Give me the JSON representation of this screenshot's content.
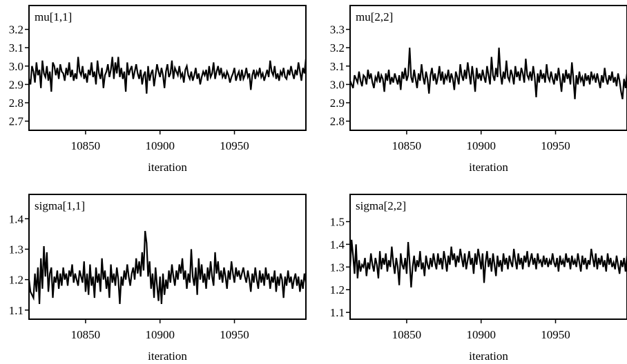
{
  "chart_data": [
    {
      "type": "line",
      "title": "mu[1,1]",
      "xlabel": "iteration",
      "ylabel": "",
      "xlim": [
        10812,
        10998
      ],
      "ylim": [
        2.65,
        3.33
      ],
      "xticks": [
        10850,
        10900,
        10950
      ],
      "yticks": [
        2.7,
        2.8,
        2.9,
        3.0,
        3.1,
        3.2
      ],
      "ytick_labels": [
        "2.7",
        "2.8",
        "2.9",
        "3.0",
        "3.1",
        "3.2"
      ],
      "series": [
        {
          "x_start": 10812,
          "x_step": 1,
          "values": [
            2.93,
            2.9,
            3.0,
            2.97,
            2.91,
            3.02,
            2.95,
            2.98,
            2.88,
            3.03,
            2.96,
            2.94,
            3.0,
            2.92,
            2.97,
            2.86,
            3.02,
            3.0,
            2.95,
            2.99,
            2.93,
            3.01,
            2.97,
            2.96,
            2.92,
            2.99,
            2.95,
            3.02,
            2.94,
            2.98,
            2.92,
            2.96,
            2.93,
            3.05,
            2.97,
            2.95,
            3.0,
            2.93,
            2.96,
            2.91,
            2.98,
            2.95,
            3.02,
            2.94,
            2.97,
            2.9,
            3.03,
            2.96,
            2.93,
            2.99,
            2.88,
            2.95,
            2.97,
            3.01,
            2.94,
            2.98,
            3.05,
            2.93,
            3.02,
            2.96,
            3.05,
            2.94,
            2.99,
            2.93,
            2.97,
            2.86,
            3.02,
            2.95,
            2.98,
            3.0,
            2.93,
            2.97,
            3.01,
            2.96,
            2.93,
            2.98,
            2.9,
            2.95,
            2.97,
            2.85,
            3.0,
            2.92,
            2.96,
            2.98,
            2.89,
            2.95,
            3.01,
            2.97,
            2.94,
            2.99,
            2.95,
            2.88,
            2.97,
            3.01,
            2.94,
            2.96,
            3.03,
            2.93,
            2.99,
            2.97,
            2.95,
            3.0,
            2.94,
            2.96,
            2.91,
            2.98,
            3.0,
            2.95,
            2.93,
            2.97,
            2.92,
            2.95,
            2.99,
            2.93,
            2.96,
            2.9,
            2.94,
            2.97,
            2.95,
            2.98,
            2.92,
            3.0,
            2.94,
            2.96,
            3.02,
            2.93,
            2.97,
            3.0,
            2.95,
            2.99,
            2.94,
            2.96,
            2.93,
            2.97,
            2.95,
            2.91,
            2.94,
            2.96,
            2.99,
            2.92,
            2.95,
            2.97,
            2.92,
            2.98,
            2.93,
            2.95,
            2.99,
            2.94,
            2.96,
            2.87,
            2.95,
            2.98,
            2.93,
            2.97,
            2.95,
            2.99,
            2.94,
            2.96,
            2.92,
            2.95,
            2.98,
            2.94,
            3.03,
            2.97,
            2.95,
            3.0,
            2.93,
            2.96,
            2.92,
            2.97,
            2.95,
            2.99,
            2.94,
            2.93,
            2.98,
            2.95,
            3.0,
            2.96,
            2.93,
            2.98,
            2.95,
            3.02,
            2.97,
            2.92,
            2.99,
            2.96,
            3.04,
            2.95,
            3.0,
            2.93,
            2.97,
            2.95,
            3.07,
            2.96,
            2.94,
            3.04,
            2.92
          ]
        }
      ]
    },
    {
      "type": "line",
      "title": "mu[2,2]",
      "xlabel": "iteration",
      "ylabel": "",
      "xlim": [
        10812,
        10998
      ],
      "ylim": [
        2.75,
        3.43
      ],
      "xticks": [
        10850,
        10900,
        10950
      ],
      "yticks": [
        2.8,
        2.9,
        3.0,
        3.1,
        3.2,
        3.3
      ],
      "ytick_labels": [
        "2.8",
        "2.9",
        "3.0",
        "3.1",
        "3.2",
        "3.3"
      ],
      "series": [
        {
          "x_start": 10812,
          "x_step": 1,
          "values": [
            3.02,
            3.0,
            2.98,
            3.05,
            3.03,
            3.01,
            3.07,
            3.02,
            2.99,
            3.05,
            3.04,
            3.0,
            3.08,
            3.03,
            3.06,
            3.01,
            2.98,
            3.04,
            3.02,
            3.07,
            3.01,
            3.05,
            3.03,
            2.96,
            3.06,
            3.02,
            3.08,
            3.0,
            3.04,
            3.01,
            3.06,
            3.03,
            3.0,
            3.05,
            2.97,
            3.07,
            3.03,
            3.09,
            3.02,
            3.05,
            3.2,
            3.04,
            3.01,
            3.08,
            3.03,
            2.98,
            3.06,
            3.02,
            3.11,
            3.04,
            3.0,
            3.07,
            3.03,
            2.95,
            3.05,
            3.09,
            3.02,
            3.06,
            3.0,
            3.04,
            3.1,
            3.02,
            3.07,
            3.0,
            3.05,
            3.03,
            3.08,
            3.01,
            3.06,
            3.03,
            2.97,
            3.07,
            3.04,
            3.0,
            3.11,
            3.05,
            3.02,
            3.08,
            3.03,
            3.12,
            3.06,
            3.0,
            3.1,
            3.04,
            2.96,
            3.09,
            3.03,
            3.06,
            3.02,
            3.08,
            3.04,
            3.01,
            3.1,
            3.05,
            3.0,
            3.15,
            3.05,
            3.02,
            3.09,
            3.04,
            3.2,
            3.06,
            3.0,
            3.07,
            3.03,
            3.13,
            3.04,
            3.02,
            3.08,
            3.05,
            3.0,
            3.1,
            3.04,
            3.07,
            3.02,
            3.09,
            3.06,
            3.01,
            3.14,
            3.05,
            3.03,
            3.07,
            3.02,
            3.1,
            3.04,
            2.93,
            3.06,
            3.01,
            3.08,
            3.03,
            3.06,
            3.01,
            3.11,
            3.04,
            3.02,
            3.07,
            3.03,
            3.0,
            3.06,
            3.02,
            3.09,
            3.03,
            2.96,
            3.06,
            3.01,
            3.08,
            3.03,
            3.06,
            3.0,
            3.12,
            3.03,
            2.92,
            3.05,
            3.0,
            3.07,
            3.02,
            3.04,
            2.99,
            3.06,
            3.02,
            3.05,
            3.0,
            3.07,
            3.03,
            3.05,
            3.01,
            3.06,
            3.02,
            2.98,
            3.05,
            3.01,
            3.09,
            3.03,
            3.0,
            3.05,
            3.02,
            3.07,
            3.01,
            3.04,
            2.99,
            3.06,
            3.02,
            2.96,
            2.92,
            3.03,
            2.98,
            3.06,
            3.01,
            3.1,
            3.02,
            3.07,
            3.04,
            3.02,
            3.13
          ]
        }
      ]
    },
    {
      "type": "line",
      "title": "sigma[1,1]",
      "xlabel": "iteration",
      "ylabel": "",
      "xlim": [
        10812,
        10998
      ],
      "ylim": [
        1.07,
        1.48
      ],
      "xticks": [
        10850,
        10900,
        10950
      ],
      "yticks": [
        1.1,
        1.2,
        1.3,
        1.4
      ],
      "ytick_labels": [
        "1.1",
        "1.2",
        "1.3",
        "1.4"
      ],
      "series": [
        {
          "x_start": 10812,
          "x_step": 1,
          "values": [
            1.2,
            1.16,
            1.15,
            1.14,
            1.22,
            1.16,
            1.24,
            1.12,
            1.27,
            1.17,
            1.31,
            1.21,
            1.29,
            1.16,
            1.22,
            1.24,
            1.14,
            1.21,
            1.19,
            1.23,
            1.17,
            1.22,
            1.18,
            1.24,
            1.2,
            1.22,
            1.18,
            1.23,
            1.21,
            1.25,
            1.19,
            1.22,
            1.2,
            1.18,
            1.23,
            1.21,
            1.19,
            1.26,
            1.16,
            1.22,
            1.15,
            1.25,
            1.18,
            1.21,
            1.14,
            1.24,
            1.19,
            1.22,
            1.16,
            1.27,
            1.2,
            1.23,
            1.17,
            1.21,
            1.14,
            1.25,
            1.19,
            1.22,
            1.18,
            1.24,
            1.2,
            1.12,
            1.21,
            1.18,
            1.23,
            1.2,
            1.25,
            1.21,
            1.18,
            1.22,
            1.24,
            1.2,
            1.27,
            1.22,
            1.26,
            1.21,
            1.29,
            1.23,
            1.36,
            1.32,
            1.21,
            1.26,
            1.17,
            1.22,
            1.14,
            1.24,
            1.18,
            1.13,
            1.21,
            1.12,
            1.22,
            1.15,
            1.2,
            1.17,
            1.23,
            1.19,
            1.25,
            1.21,
            1.18,
            1.23,
            1.2,
            1.25,
            1.22,
            1.27,
            1.2,
            1.23,
            1.17,
            1.22,
            1.19,
            1.3,
            1.21,
            1.18,
            1.24,
            1.15,
            1.27,
            1.2,
            1.25,
            1.19,
            1.22,
            1.17,
            1.24,
            1.2,
            1.26,
            1.21,
            1.18,
            1.29,
            1.22,
            1.26,
            1.2,
            1.23,
            1.19,
            1.24,
            1.21,
            1.17,
            1.23,
            1.2,
            1.26,
            1.22,
            1.19,
            1.24,
            1.21,
            1.23,
            1.2,
            1.22,
            1.24,
            1.21,
            1.19,
            1.23,
            1.2,
            1.16,
            1.22,
            1.19,
            1.24,
            1.2,
            1.17,
            1.23,
            1.19,
            1.22,
            1.18,
            1.24,
            1.2,
            1.22,
            1.17,
            1.21,
            1.19,
            1.23,
            1.16,
            1.21,
            1.18,
            1.22,
            1.2,
            1.14,
            1.21,
            1.18,
            1.23,
            1.19,
            1.21,
            1.17,
            1.2,
            1.22,
            1.18,
            1.21,
            1.16,
            1.2,
            1.17,
            1.22,
            1.19,
            1.21,
            1.16,
            1.14,
            1.2
          ]
        }
      ]
    },
    {
      "type": "line",
      "title": "sigma[2,2]",
      "xlabel": "iteration",
      "ylabel": "",
      "xlim": [
        10812,
        10998
      ],
      "ylim": [
        1.07,
        1.62
      ],
      "xticks": [
        10850,
        10900,
        10950
      ],
      "yticks": [
        1.1,
        1.2,
        1.3,
        1.4,
        1.5
      ],
      "ytick_labels": [
        "1.1",
        "1.2",
        "1.3",
        "1.4",
        "1.5"
      ],
      "series": [
        {
          "x_start": 10812,
          "x_step": 1,
          "values": [
            1.3,
            1.42,
            1.35,
            1.27,
            1.4,
            1.25,
            1.33,
            1.28,
            1.31,
            1.3,
            1.34,
            1.26,
            1.32,
            1.29,
            1.36,
            1.31,
            1.28,
            1.34,
            1.31,
            1.25,
            1.37,
            1.29,
            1.34,
            1.31,
            1.36,
            1.28,
            1.33,
            1.3,
            1.39,
            1.32,
            1.27,
            1.34,
            1.3,
            1.22,
            1.36,
            1.31,
            1.29,
            1.34,
            1.27,
            1.41,
            1.32,
            1.21,
            1.3,
            1.35,
            1.28,
            1.33,
            1.3,
            1.37,
            1.29,
            1.32,
            1.26,
            1.35,
            1.31,
            1.29,
            1.34,
            1.3,
            1.36,
            1.32,
            1.29,
            1.36,
            1.31,
            1.34,
            1.29,
            1.37,
            1.33,
            1.28,
            1.35,
            1.31,
            1.39,
            1.33,
            1.36,
            1.3,
            1.35,
            1.32,
            1.38,
            1.34,
            1.3,
            1.36,
            1.29,
            1.33,
            1.37,
            1.31,
            1.34,
            1.27,
            1.36,
            1.31,
            1.38,
            1.34,
            1.29,
            1.36,
            1.23,
            1.32,
            1.37,
            1.3,
            1.34,
            1.28,
            1.36,
            1.31,
            1.26,
            1.35,
            1.3,
            1.33,
            1.28,
            1.36,
            1.31,
            1.34,
            1.29,
            1.35,
            1.32,
            1.3,
            1.38,
            1.33,
            1.29,
            1.36,
            1.31,
            1.34,
            1.29,
            1.35,
            1.32,
            1.37,
            1.3,
            1.33,
            1.36,
            1.31,
            1.34,
            1.29,
            1.36,
            1.32,
            1.33,
            1.3,
            1.35,
            1.31,
            1.34,
            1.3,
            1.33,
            1.31,
            1.36,
            1.32,
            1.3,
            1.34,
            1.28,
            1.35,
            1.31,
            1.33,
            1.3,
            1.36,
            1.32,
            1.34,
            1.29,
            1.35,
            1.31,
            1.33,
            1.3,
            1.36,
            1.32,
            1.28,
            1.35,
            1.31,
            1.34,
            1.29,
            1.33,
            1.31,
            1.38,
            1.34,
            1.3,
            1.36,
            1.29,
            1.34,
            1.31,
            1.35,
            1.3,
            1.33,
            1.28,
            1.36,
            1.31,
            1.34,
            1.3,
            1.32,
            1.29,
            1.35,
            1.31,
            1.27,
            1.33,
            1.3,
            1.34,
            1.28,
            1.35,
            1.31,
            1.3,
            1.36,
            1.38,
            1.41,
            1.33,
            1.42,
            1.35
          ]
        }
      ]
    }
  ]
}
